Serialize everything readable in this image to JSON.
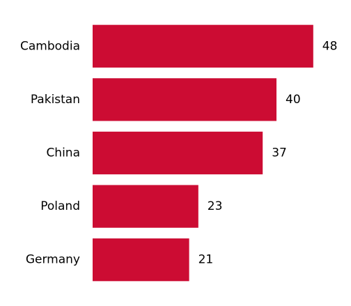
{
  "chart_data": {
    "type": "barh",
    "categories": [
      "Cambodia",
      "Pakistan",
      "China",
      "Poland",
      "Germany"
    ],
    "values": [
      48,
      40,
      37,
      23,
      21
    ],
    "color": "#cc0c33",
    "xlim": [
      0,
      50
    ]
  }
}
